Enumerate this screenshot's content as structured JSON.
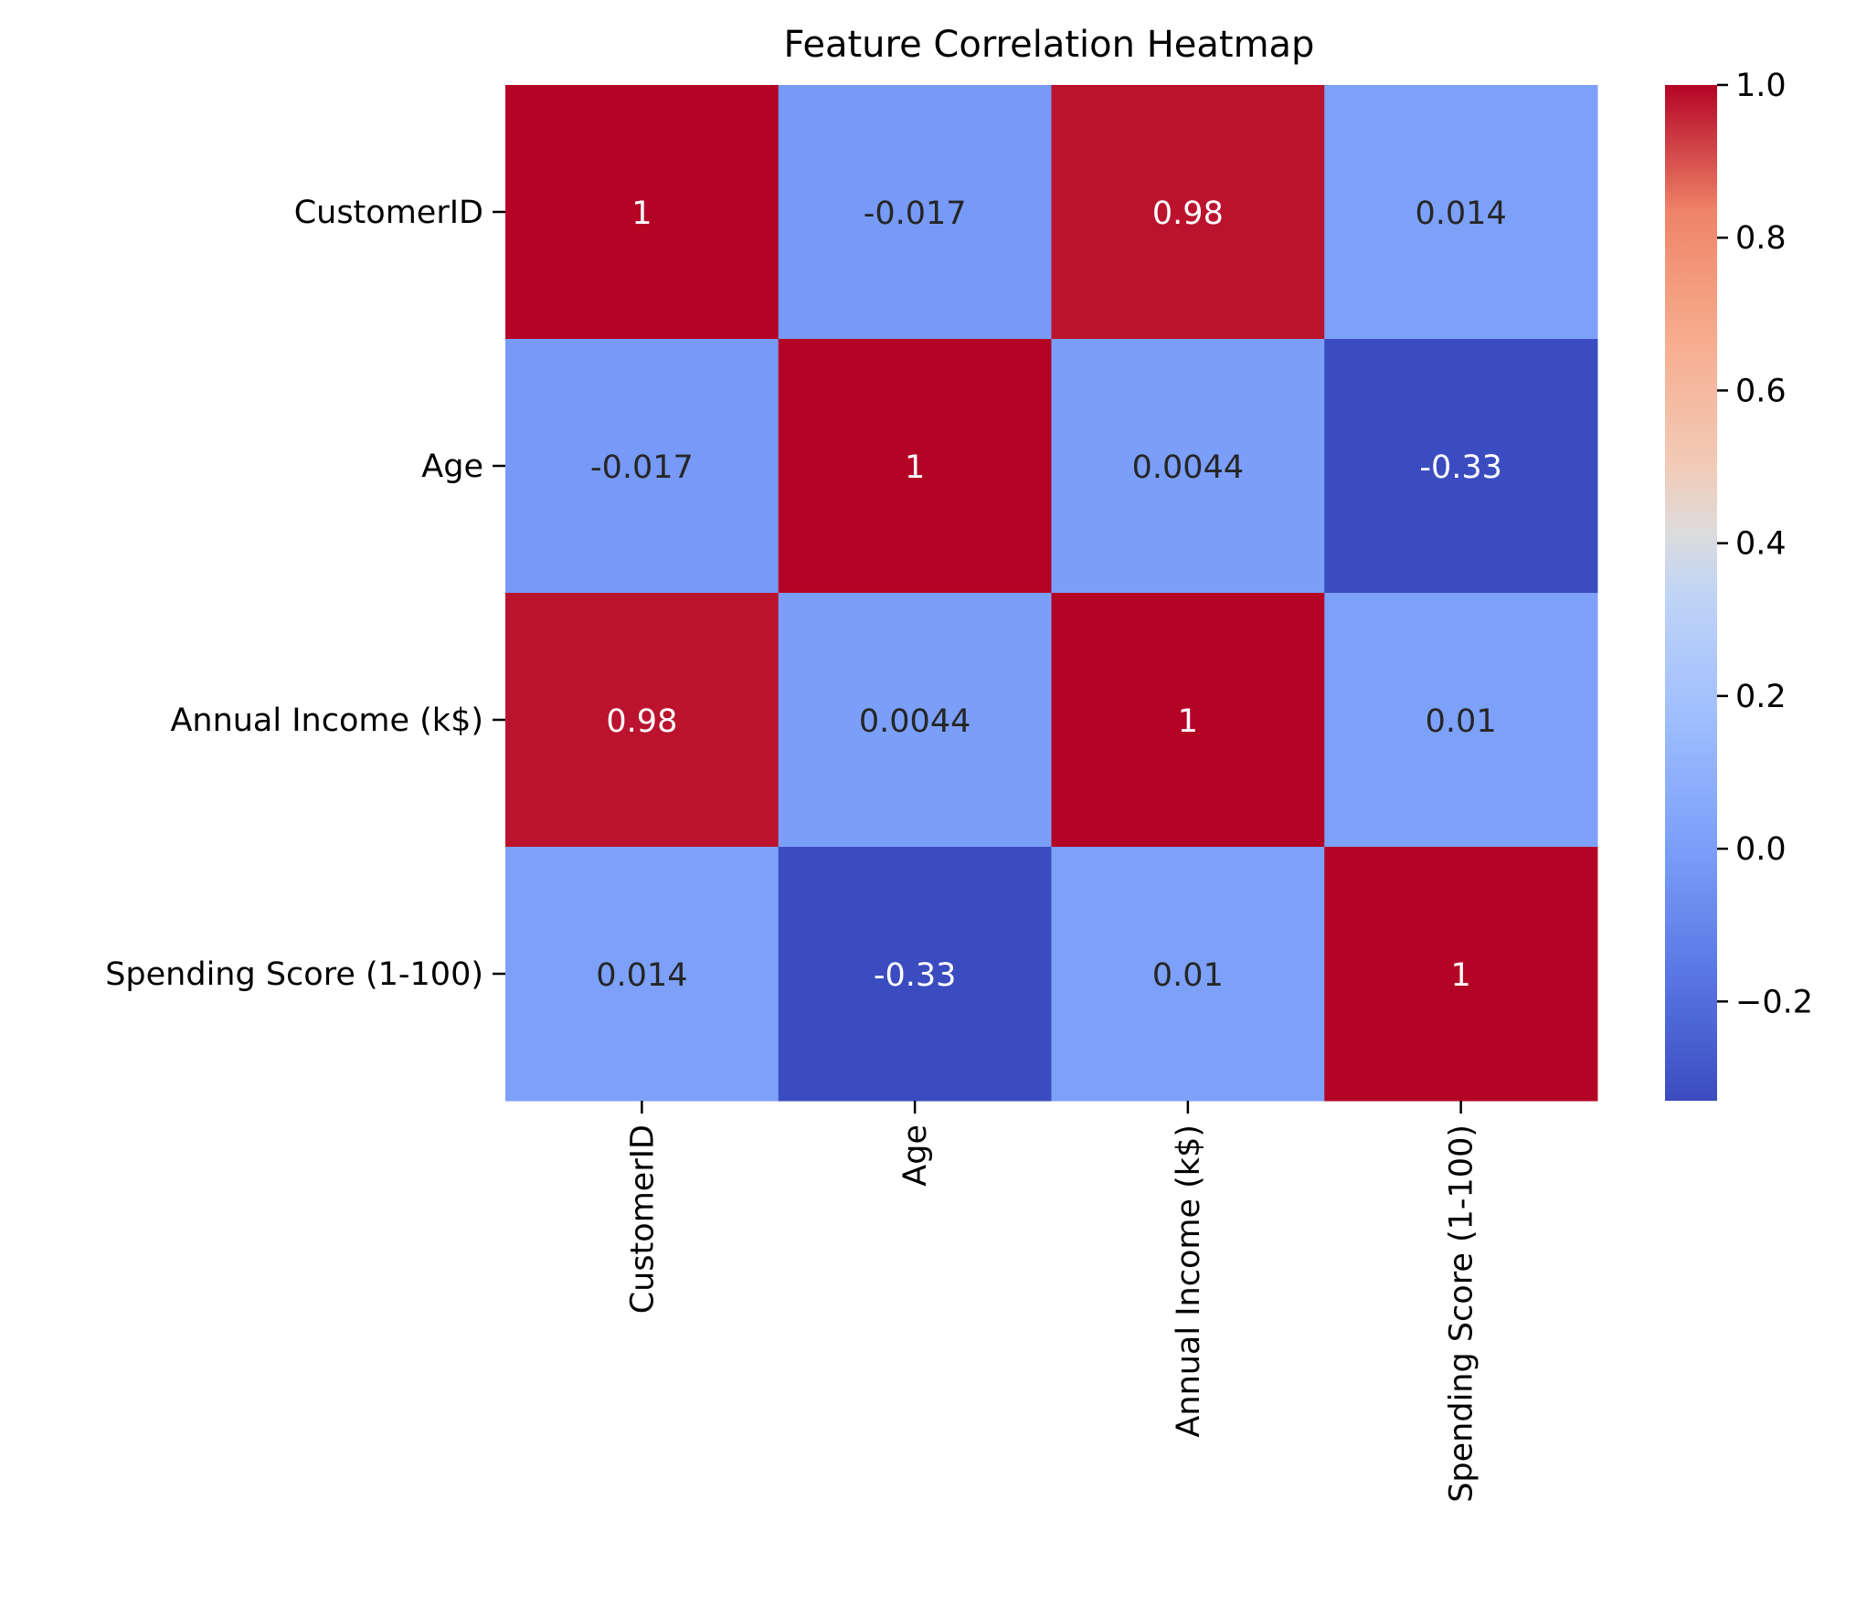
{
  "chart_data": {
    "type": "heatmap",
    "title": "Feature Correlation Heatmap",
    "xlabel": "",
    "ylabel": "",
    "row_labels": [
      "CustomerID",
      "Age",
      "Annual Income (k$)",
      "Spending Score (1-100)"
    ],
    "column_labels": [
      "CustomerID",
      "Age",
      "Annual Income (k$)",
      "Spending Score (1-100)"
    ],
    "values": [
      [
        1,
        -0.017,
        0.98,
        0.014
      ],
      [
        -0.017,
        1,
        0.0044,
        -0.33
      ],
      [
        0.98,
        0.0044,
        1,
        0.01
      ],
      [
        0.014,
        -0.33,
        0.01,
        1
      ]
    ],
    "cell_labels": [
      [
        "1",
        "-0.017",
        "0.98",
        "0.014"
      ],
      [
        "-0.017",
        "1",
        "0.0044",
        "-0.33"
      ],
      [
        "0.98",
        "0.0044",
        "1",
        "0.01"
      ],
      [
        "0.014",
        "-0.33",
        "0.01",
        "1"
      ]
    ],
    "colormap": "coolwarm",
    "color_range": [
      -0.33,
      1.0
    ],
    "colorbar": {
      "ticks": [
        1.0,
        0.8,
        0.6,
        0.4,
        0.2,
        0.0,
        -0.2
      ],
      "tick_labels": [
        "1.0",
        "0.8",
        "0.6",
        "0.4",
        "0.2",
        "0.0",
        "−0.2"
      ],
      "placement": "right"
    },
    "grid": false,
    "colors": {
      "positive_strong": "#b40426",
      "neutral": "#dddddd",
      "negative_strong": "#3b4cc0",
      "annotation_dark_text": "#262626",
      "annotation_light_text": "#ffffff"
    }
  }
}
